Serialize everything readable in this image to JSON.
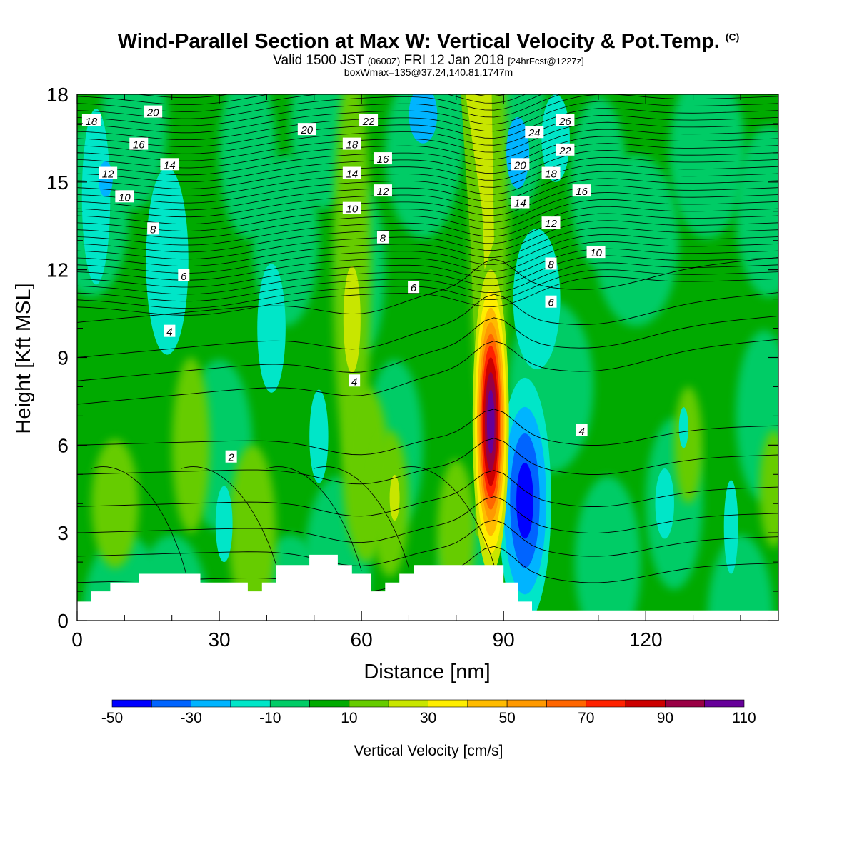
{
  "title": "Wind-Parallel Section at Max W: Vertical Velocity & Pot.Temp.",
  "copyright_mark": "(C)",
  "subtitle_main_a": "Valid 1500 JST",
  "subtitle_paren": "(0600Z)",
  "subtitle_main_b": "FRI 12 Jan 2018",
  "subtitle_fcst": "[24hrFcst@1227z]",
  "subtitle_box": "boxWmax=135@37.24,140.81,1747m",
  "chart_data": {
    "type": "heatmap",
    "xlabel": "Distance [nm]",
    "ylabel": "Height [Kft MSL]",
    "xlim": [
      0,
      148
    ],
    "ylim": [
      0,
      18
    ],
    "xticks": [
      0,
      30,
      60,
      90,
      120
    ],
    "yticks": [
      0,
      3,
      6,
      9,
      12,
      15,
      18
    ],
    "colorbar": {
      "label": "Vertical Velocity [cm/s]",
      "levels": [
        -50,
        -40,
        -30,
        -20,
        -10,
        0,
        10,
        20,
        30,
        40,
        50,
        60,
        70,
        80,
        90,
        100,
        110
      ],
      "tick_labels": [
        "-50",
        "-30",
        "-10",
        "10",
        "30",
        "50",
        "70",
        "90",
        "110"
      ],
      "colors": [
        "#0000ff",
        "#0064ff",
        "#00b4ff",
        "#00e6c8",
        "#00cc66",
        "#00aa00",
        "#66cc00",
        "#c8e600",
        "#ffee00",
        "#ffbb00",
        "#ff9900",
        "#ff6600",
        "#ff2200",
        "#cc0000",
        "#990044",
        "#660099"
      ]
    },
    "max_updraft": {
      "x": 87,
      "height_kft": 6.5,
      "value_cms": 135
    },
    "terrain_kft": [
      [
        0,
        0.65
      ],
      [
        3,
        0.65
      ],
      [
        3,
        1.0
      ],
      [
        7,
        1.0
      ],
      [
        7,
        1.3
      ],
      [
        13,
        1.3
      ],
      [
        13,
        1.6
      ],
      [
        26,
        1.6
      ],
      [
        26,
        1.3
      ],
      [
        36,
        1.3
      ],
      [
        36,
        1.0
      ],
      [
        39,
        1.0
      ],
      [
        39,
        1.3
      ],
      [
        42,
        1.3
      ],
      [
        42,
        1.9
      ],
      [
        49,
        1.9
      ],
      [
        49,
        2.25
      ],
      [
        55,
        2.25
      ],
      [
        55,
        1.9
      ],
      [
        58,
        1.9
      ],
      [
        58,
        1.6
      ],
      [
        62,
        1.6
      ],
      [
        62,
        1.0
      ],
      [
        65,
        1.0
      ],
      [
        65,
        1.3
      ],
      [
        68,
        1.3
      ],
      [
        68,
        1.6
      ],
      [
        71,
        1.6
      ],
      [
        71,
        1.9
      ],
      [
        90,
        1.9
      ],
      [
        90,
        1.3
      ],
      [
        93,
        1.3
      ],
      [
        93,
        0.65
      ],
      [
        96,
        0.65
      ],
      [
        96,
        0.35
      ],
      [
        148,
        0.35
      ]
    ],
    "theta_contour_labels": [
      {
        "text": "18",
        "x": 3,
        "y": 17.1
      },
      {
        "text": "20",
        "x": 16,
        "y": 17.4
      },
      {
        "text": "16",
        "x": 13,
        "y": 16.3
      },
      {
        "text": "14",
        "x": 19.5,
        "y": 15.6
      },
      {
        "text": "12",
        "x": 6.5,
        "y": 15.3
      },
      {
        "text": "10",
        "x": 10,
        "y": 14.5
      },
      {
        "text": "8",
        "x": 16,
        "y": 13.4
      },
      {
        "text": "6",
        "x": 22.5,
        "y": 11.8
      },
      {
        "text": "4",
        "x": 19.5,
        "y": 9.9
      },
      {
        "text": "2",
        "x": 32.5,
        "y": 5.6
      },
      {
        "text": "20",
        "x": 48.5,
        "y": 16.8
      },
      {
        "text": "22",
        "x": 61.5,
        "y": 17.1
      },
      {
        "text": "18",
        "x": 58,
        "y": 16.3
      },
      {
        "text": "16",
        "x": 64.5,
        "y": 15.8
      },
      {
        "text": "14",
        "x": 58,
        "y": 15.3
      },
      {
        "text": "12",
        "x": 64.5,
        "y": 14.7
      },
      {
        "text": "10",
        "x": 58,
        "y": 14.1
      },
      {
        "text": "8",
        "x": 64.5,
        "y": 13.1
      },
      {
        "text": "6",
        "x": 71,
        "y": 11.4
      },
      {
        "text": "4",
        "x": 58.5,
        "y": 8.2
      },
      {
        "text": "26",
        "x": 103,
        "y": 17.1
      },
      {
        "text": "24",
        "x": 96.5,
        "y": 16.7
      },
      {
        "text": "22",
        "x": 103,
        "y": 16.1
      },
      {
        "text": "20",
        "x": 93.5,
        "y": 15.6
      },
      {
        "text": "18",
        "x": 100,
        "y": 15.3
      },
      {
        "text": "16",
        "x": 106.5,
        "y": 14.7
      },
      {
        "text": "14",
        "x": 93.5,
        "y": 14.3
      },
      {
        "text": "12",
        "x": 100,
        "y": 13.6
      },
      {
        "text": "10",
        "x": 109.5,
        "y": 12.6
      },
      {
        "text": "8",
        "x": 100,
        "y": 12.2
      },
      {
        "text": "6",
        "x": 100,
        "y": 10.9
      },
      {
        "text": "4",
        "x": 106.5,
        "y": 6.5
      }
    ]
  }
}
